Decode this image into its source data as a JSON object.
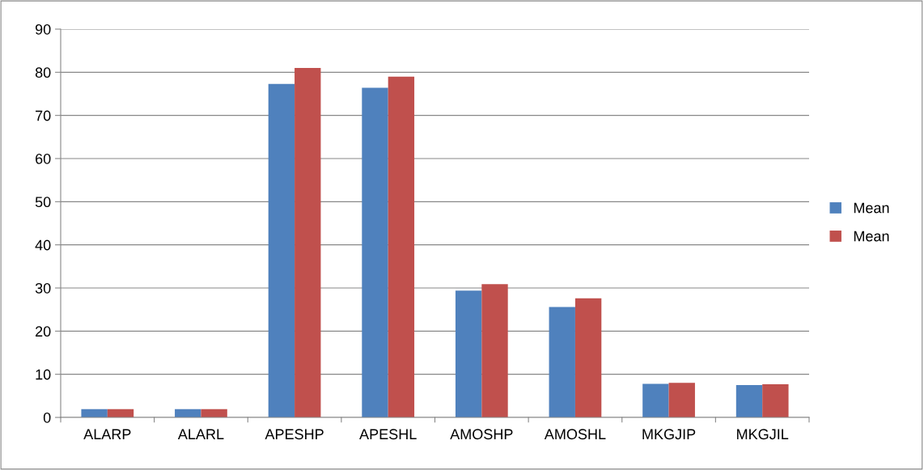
{
  "chart_data": {
    "type": "bar",
    "categories": [
      "ALARP",
      "ALARL",
      "APESHP",
      "APESHL",
      "AMOSHP",
      "AMOSHL",
      "MKGJIP",
      "MKGJIL"
    ],
    "series": [
      {
        "name": "Mean",
        "color": "#4f81bd",
        "values": [
          1.9,
          1.9,
          77.3,
          76.4,
          29.4,
          25.6,
          7.8,
          7.5
        ]
      },
      {
        "name": "Mean",
        "color": "#c0504d",
        "values": [
          1.9,
          1.9,
          81.0,
          79.0,
          30.9,
          27.6,
          8.0,
          7.7
        ]
      }
    ],
    "ylim": [
      0,
      90
    ],
    "yticks": [
      0,
      10,
      20,
      30,
      40,
      50,
      60,
      70,
      80,
      90
    ],
    "grid": "y",
    "legend": "right"
  }
}
